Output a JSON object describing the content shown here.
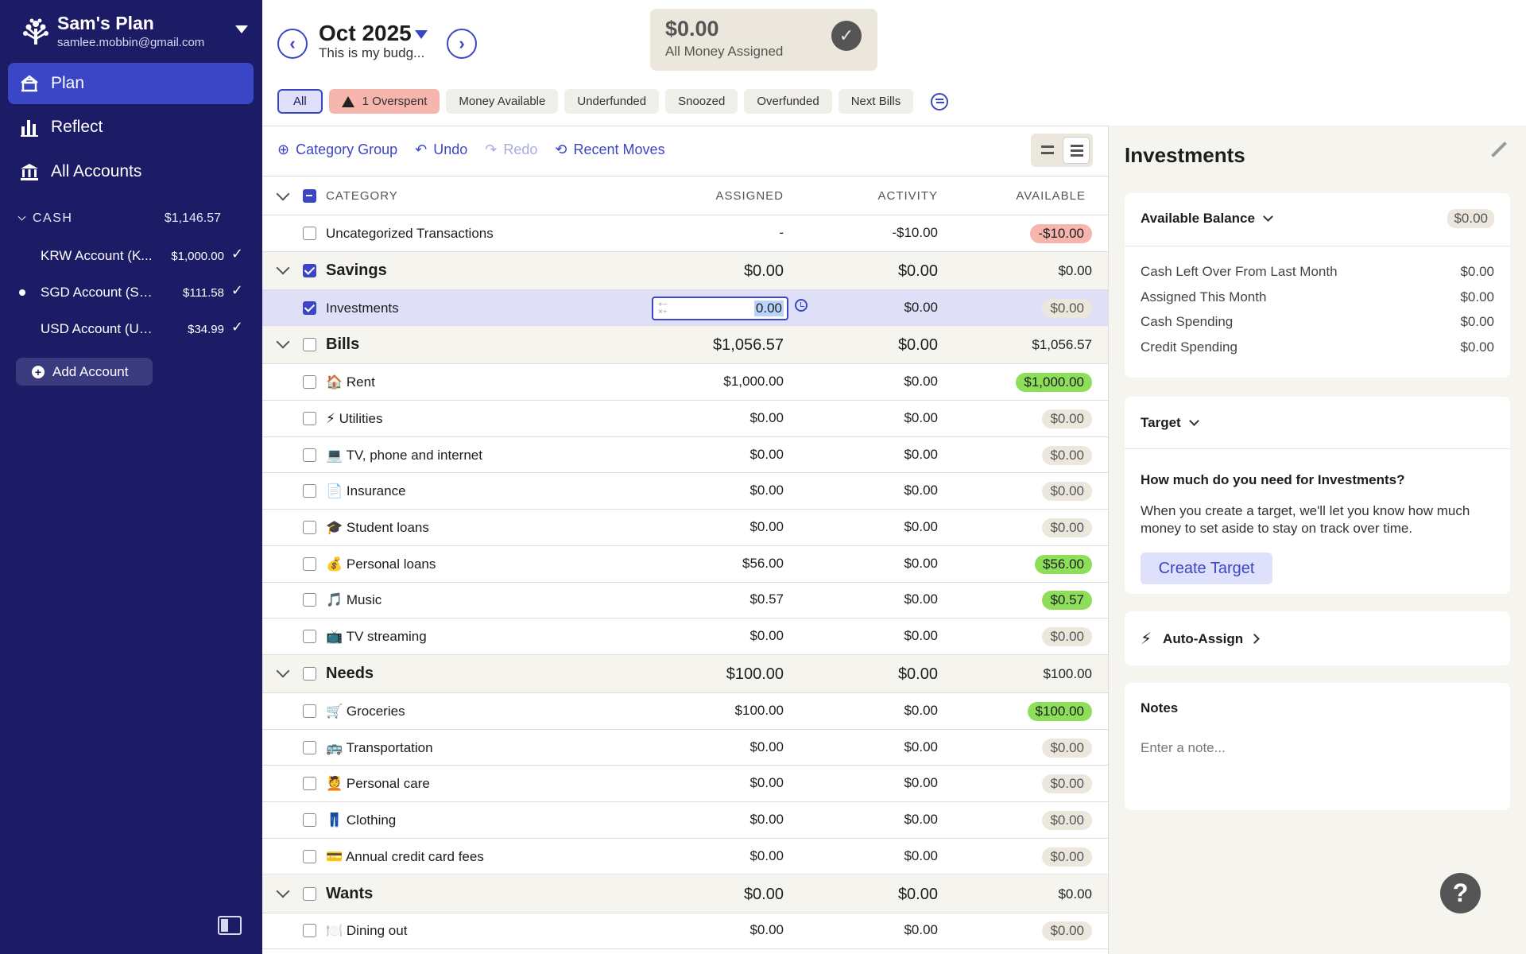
{
  "sidebar": {
    "plan_name": "Sam's Plan",
    "email": "samlee.mobbin@gmail.com",
    "nav": [
      {
        "label": "Plan",
        "icon": "plan-icon",
        "active": true
      },
      {
        "label": "Reflect",
        "icon": "bar-chart-icon",
        "active": false
      },
      {
        "label": "All Accounts",
        "icon": "bank-icon",
        "active": false
      }
    ],
    "cash_label": "CASH",
    "cash_total": "$1,146.57",
    "accounts": [
      {
        "name": "KRW Account (K...",
        "balance": "$1,000.00",
        "status": "✓"
      },
      {
        "name": "SGD Account (SG...",
        "balance": "$111.58",
        "status": "✓"
      },
      {
        "name": "USD Account (USD...",
        "balance": "$34.99",
        "status": "✓"
      }
    ],
    "add_account": "Add Account"
  },
  "header": {
    "prev": "‹",
    "next": "›",
    "month": "Oct 2025",
    "subtitle": "This is my budg...",
    "assigned_amount": "$0.00",
    "assigned_label": "All Money Assigned",
    "check": "✓"
  },
  "filters": {
    "all": "All",
    "overspent": "1 Overspent",
    "money_available": "Money Available",
    "underfunded": "Underfunded",
    "snoozed": "Snoozed",
    "overfunded": "Overfunded",
    "next_bills": "Next Bills"
  },
  "toolbar": {
    "category_group": "Category Group",
    "undo": "Undo",
    "redo": "Redo",
    "recent_moves": "Recent Moves"
  },
  "table": {
    "col_category": "CATEGORY",
    "col_assigned": "ASSIGNED",
    "col_activity": "ACTIVITY",
    "col_available": "AVAILABLE",
    "rows": [
      {
        "type": "cat",
        "name": "Uncategorized Transactions",
        "assigned": "-",
        "activity": "-$10.00",
        "available": "-$10.00",
        "pill": "red"
      },
      {
        "type": "group",
        "name": "Savings",
        "assigned": "$0.00",
        "activity": "$0.00",
        "available": "$0.00",
        "checked": true
      },
      {
        "type": "cat",
        "name": "Investments",
        "assigned": "0.00",
        "activity": "$0.00",
        "available": "$0.00",
        "pill": "neutral",
        "selected": true,
        "checked": true
      },
      {
        "type": "group",
        "name": "Bills",
        "assigned": "$1,056.57",
        "activity": "$0.00",
        "available": "$1,056.57"
      },
      {
        "type": "cat",
        "name": "🏠 Rent",
        "assigned": "$1,000.00",
        "activity": "$0.00",
        "available": "$1,000.00",
        "pill": "green"
      },
      {
        "type": "cat",
        "name": "⚡ Utilities",
        "assigned": "$0.00",
        "activity": "$0.00",
        "available": "$0.00",
        "pill": "neutral"
      },
      {
        "type": "cat",
        "name": "💻 TV, phone and internet",
        "assigned": "$0.00",
        "activity": "$0.00",
        "available": "$0.00",
        "pill": "neutral"
      },
      {
        "type": "cat",
        "name": "📄 Insurance",
        "assigned": "$0.00",
        "activity": "$0.00",
        "available": "$0.00",
        "pill": "neutral"
      },
      {
        "type": "cat",
        "name": "🎓 Student loans",
        "assigned": "$0.00",
        "activity": "$0.00",
        "available": "$0.00",
        "pill": "neutral"
      },
      {
        "type": "cat",
        "name": "💰 Personal loans",
        "assigned": "$56.00",
        "activity": "$0.00",
        "available": "$56.00",
        "pill": "green"
      },
      {
        "type": "cat",
        "name": "🎵 Music",
        "assigned": "$0.57",
        "activity": "$0.00",
        "available": "$0.57",
        "pill": "green"
      },
      {
        "type": "cat",
        "name": "📺 TV streaming",
        "assigned": "$0.00",
        "activity": "$0.00",
        "available": "$0.00",
        "pill": "neutral"
      },
      {
        "type": "group",
        "name": "Needs",
        "assigned": "$100.00",
        "activity": "$0.00",
        "available": "$100.00"
      },
      {
        "type": "cat",
        "name": "🛒 Groceries",
        "assigned": "$100.00",
        "activity": "$0.00",
        "available": "$100.00",
        "pill": "green"
      },
      {
        "type": "cat",
        "name": "🚌 Transportation",
        "assigned": "$0.00",
        "activity": "$0.00",
        "available": "$0.00",
        "pill": "neutral"
      },
      {
        "type": "cat",
        "name": "💆 Personal care",
        "assigned": "$0.00",
        "activity": "$0.00",
        "available": "$0.00",
        "pill": "neutral"
      },
      {
        "type": "cat",
        "name": "👖 Clothing",
        "assigned": "$0.00",
        "activity": "$0.00",
        "available": "$0.00",
        "pill": "neutral"
      },
      {
        "type": "cat",
        "name": "💳 Annual credit card fees",
        "assigned": "$0.00",
        "activity": "$0.00",
        "available": "$0.00",
        "pill": "neutral"
      },
      {
        "type": "group",
        "name": "Wants",
        "assigned": "$0.00",
        "activity": "$0.00",
        "available": "$0.00"
      },
      {
        "type": "cat",
        "name": "🍽️ Dining out",
        "assigned": "$0.00",
        "activity": "$0.00",
        "available": "$0.00",
        "pill": "neutral"
      }
    ]
  },
  "panel": {
    "title": "Investments",
    "available_balance_label": "Available Balance",
    "available_balance": "$0.00",
    "items": [
      {
        "label": "Cash Left Over From Last Month",
        "value": "$0.00"
      },
      {
        "label": "Assigned This Month",
        "value": "$0.00"
      },
      {
        "label": "Cash Spending",
        "value": "$0.00"
      },
      {
        "label": "Credit Spending",
        "value": "$0.00"
      }
    ],
    "target_label": "Target",
    "target_question": "How much do you need for Investments?",
    "target_desc": "When you create a target, we'll let you know how much money to set aside to stay on track over time.",
    "create_target": "Create Target",
    "auto_assign": "Auto-Assign",
    "notes_label": "Notes",
    "notes_placeholder": "Enter a note..."
  },
  "help": "?",
  "colors": {
    "sidebar_bg": "#1c1b66",
    "accent": "#3b46c6",
    "green_pill": "#8ddf5a",
    "red_pill": "#f6b5ad",
    "neutral_pill": "#ebe7dd"
  }
}
